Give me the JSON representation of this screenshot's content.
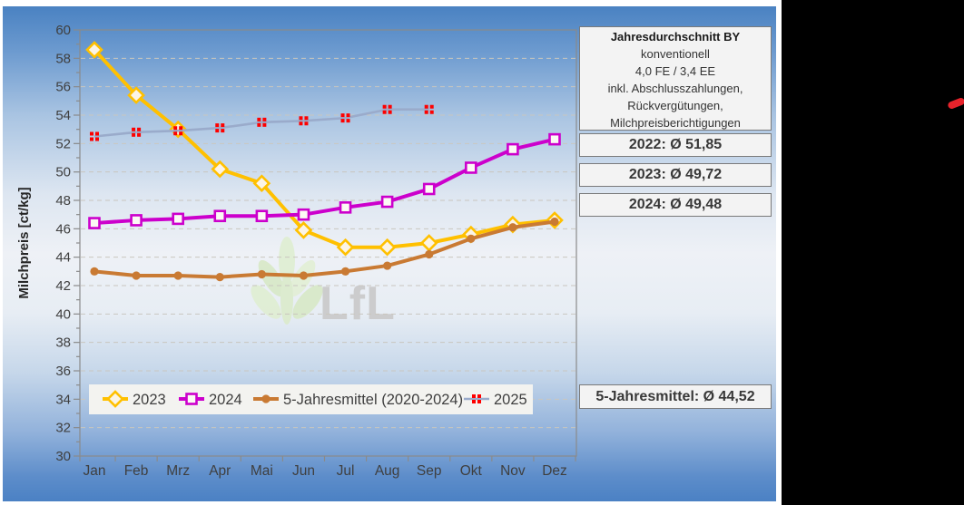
{
  "chart_data": {
    "type": "line",
    "title": "",
    "xlabel": "",
    "ylabel": "Milchpreis [ct/kg]",
    "ylim": [
      30,
      60
    ],
    "ytick_step": 2,
    "grid": true,
    "legend_position": "bottom-inside",
    "categories": [
      "Jan",
      "Feb",
      "Mrz",
      "Apr",
      "Mai",
      "Jun",
      "Jul",
      "Aug",
      "Sep",
      "Okt",
      "Nov",
      "Dez"
    ],
    "series": [
      {
        "name": "2023",
        "color": "#FFC000",
        "marker": "diamond",
        "marker_fill": "#fbf4e6",
        "line_width": 4,
        "values": [
          58.6,
          55.4,
          53.0,
          50.2,
          49.2,
          45.9,
          44.7,
          44.7,
          45.0,
          45.6,
          46.3,
          46.6
        ]
      },
      {
        "name": "2024",
        "color": "#CC00CC",
        "marker": "square",
        "marker_fill": "#fcfaf4",
        "line_width": 4,
        "values": [
          46.4,
          46.6,
          46.7,
          46.9,
          46.9,
          47.0,
          47.5,
          47.9,
          48.8,
          50.3,
          51.6,
          52.3
        ]
      },
      {
        "name": "5-Jahresmittel (2020-2024)",
        "color": "#C97A33",
        "marker": "circle",
        "marker_fill": "#C97A33",
        "line_width": 4,
        "values": [
          43.0,
          42.7,
          42.7,
          42.6,
          42.8,
          42.7,
          43.0,
          43.4,
          44.2,
          45.3,
          46.1,
          46.5
        ]
      },
      {
        "name": "2025",
        "color": "#9AABCB",
        "marker": "checker",
        "marker_fill": "#FE0000",
        "line_width": 2.6,
        "values": [
          52.5,
          52.8,
          52.9,
          53.1,
          53.5,
          53.6,
          53.8,
          54.4,
          54.4
        ]
      }
    ],
    "watermark": "LfL"
  },
  "panel": {
    "info_box": {
      "title": "Jahresdurchschnitt BY",
      "lines": [
        "konventionell",
        "4,0 FE / 3,4 EE",
        "inkl. Abschlusszahlungen,",
        "Rückvergütungen,",
        "Milchpreisberichtigungen"
      ]
    },
    "year_boxes": [
      "2022: Ø 51,85",
      "2023: Ø 49,72",
      "2024: Ø 49,48"
    ],
    "five_year_box": "5-Jahresmittel: Ø 44,52"
  },
  "colors": {
    "background_right": "#000000",
    "slide_gradient_top": "#4A82C2",
    "slide_gradient_middle": "#EEF1F6",
    "gridline": "#C9C6BF",
    "axis_text": "#3F3F3F",
    "box_background": "#F3F3F3",
    "box_border": "#7A7A7A",
    "red_logo_mark": "#E8232B"
  }
}
